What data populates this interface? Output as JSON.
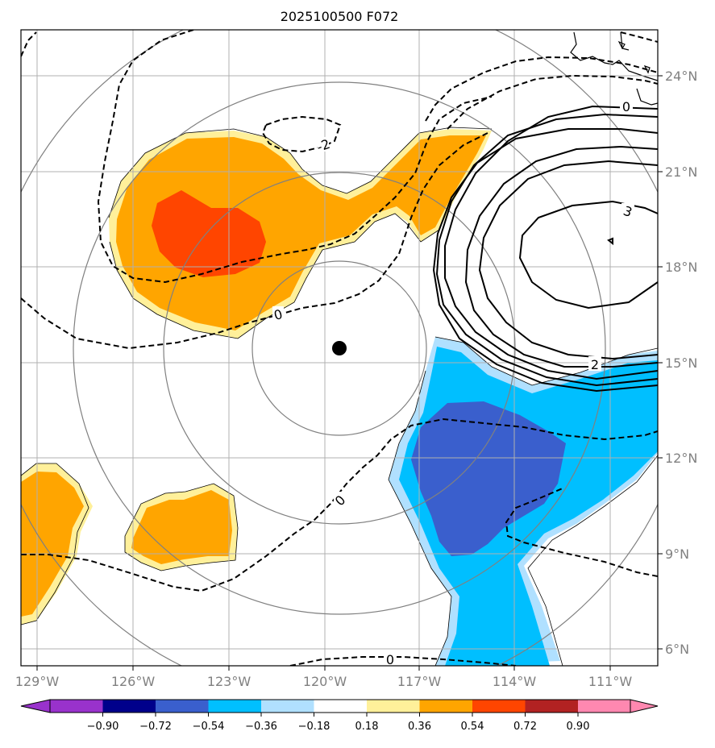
{
  "title": "2025100500 F072",
  "x_ticks": [
    "129°W",
    "126°W",
    "123°W",
    "120°W",
    "117°W",
    "114°W",
    "111°W"
  ],
  "y_ticks": [
    "24°N",
    "21°N",
    "18°N",
    "15°N",
    "12°N",
    "9°N",
    "6°N"
  ],
  "contour_labels": {
    "neg2": "-2",
    "zero_left": "0",
    "zero_mid": "0",
    "zero_bottom": "0",
    "zero_right": "0",
    "three": "3",
    "two": "2"
  },
  "colorbar": {
    "labels": [
      "−0.90",
      "−0.72",
      "−0.54",
      "−0.36",
      "−0.18",
      "0.18",
      "0.36",
      "0.54",
      "0.72",
      "0.90"
    ],
    "colors": [
      "#9932cc",
      "#00008b",
      "#3a5fcd",
      "#00bfff",
      "#b0e0ff",
      "#ffffff",
      "#fff09a",
      "#ffa500",
      "#ff4500",
      "#b22222",
      "#ff88b0"
    ]
  },
  "map_data": {
    "lon_range": [
      -129.5,
      -110.0
    ],
    "lat_range": [
      5.5,
      25.5
    ],
    "storm_center": {
      "lon": -119.6,
      "lat": 15.4
    },
    "colors": {
      "light_orange": "#fff09a",
      "orange": "#ffa500",
      "red_orange": "#ff4500",
      "light_blue": "#b0e0ff",
      "blue": "#00bfff",
      "dark_blue": "#3a5fcd"
    }
  }
}
